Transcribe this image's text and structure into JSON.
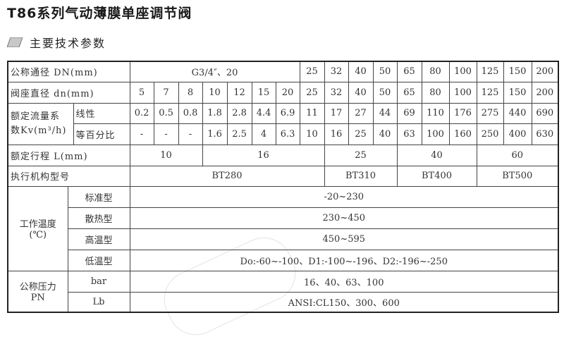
{
  "title": "T86系列气动薄膜单座调节阀",
  "section": {
    "icon": "parallelogram-bullet-icon",
    "label": "主要技术参数",
    "icon_color": "#c8c8c8"
  },
  "table": {
    "dn": {
      "label": "公称通径 DN(mm)",
      "small": "G3/4″、20",
      "values": [
        "25",
        "32",
        "40",
        "50",
        "65",
        "80",
        "100",
        "125",
        "150",
        "200"
      ]
    },
    "seat": {
      "label": "阀座直径 dn(mm)",
      "values": [
        "5",
        "7",
        "8",
        "10",
        "12",
        "15",
        "20",
        "25",
        "32",
        "40",
        "50",
        "65",
        "80",
        "100",
        "125",
        "150",
        "200"
      ]
    },
    "kv": {
      "label_line1": "额定流量系",
      "label_line2": "数Kv(m³/h)",
      "linear": {
        "label": "线性",
        "values": [
          "0.2",
          "0.5",
          "0.8",
          "1.8",
          "2.8",
          "4.4",
          "6.9",
          "11",
          "17",
          "27",
          "44",
          "69",
          "110",
          "176",
          "275",
          "440",
          "690"
        ]
      },
      "equal": {
        "label": "等百分比",
        "values": [
          "-",
          "-",
          "-",
          "1.6",
          "2.5",
          "4",
          "6.3",
          "10",
          "16",
          "25",
          "40",
          "63",
          "100",
          "160",
          "250",
          "400",
          "630"
        ]
      }
    },
    "stroke": {
      "label": "额定行程 L(mm)",
      "values": [
        "10",
        "16",
        "25",
        "40",
        "60"
      ]
    },
    "actuator": {
      "label": "执行机构型号",
      "values": [
        "BT280",
        "BT310",
        "BT400",
        "BT500"
      ]
    },
    "temp": {
      "label_line1": "工作温度",
      "label_line2": "(℃)",
      "rows": [
        {
          "type": "标准型",
          "value": "-20~230"
        },
        {
          "type": "散热型",
          "value": "230~450"
        },
        {
          "type": "高温型",
          "value": "450~595"
        },
        {
          "type": "低温型",
          "value": "Do:-60~-100、D1:-100~-196、D2:-196~-250"
        }
      ]
    },
    "pressure": {
      "label_line1": "公称压力",
      "label_line2": "PN",
      "rows": [
        {
          "type": "bar",
          "value": "16、40、63、100"
        },
        {
          "type": "Lb",
          "value": "ANSI:CL150、300、600"
        }
      ]
    }
  }
}
